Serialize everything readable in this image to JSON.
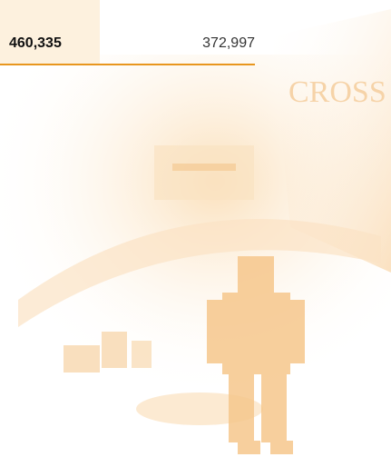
{
  "table": {
    "rows": [
      [
        "460,335",
        "372,997"
      ]
    ]
  }
}
